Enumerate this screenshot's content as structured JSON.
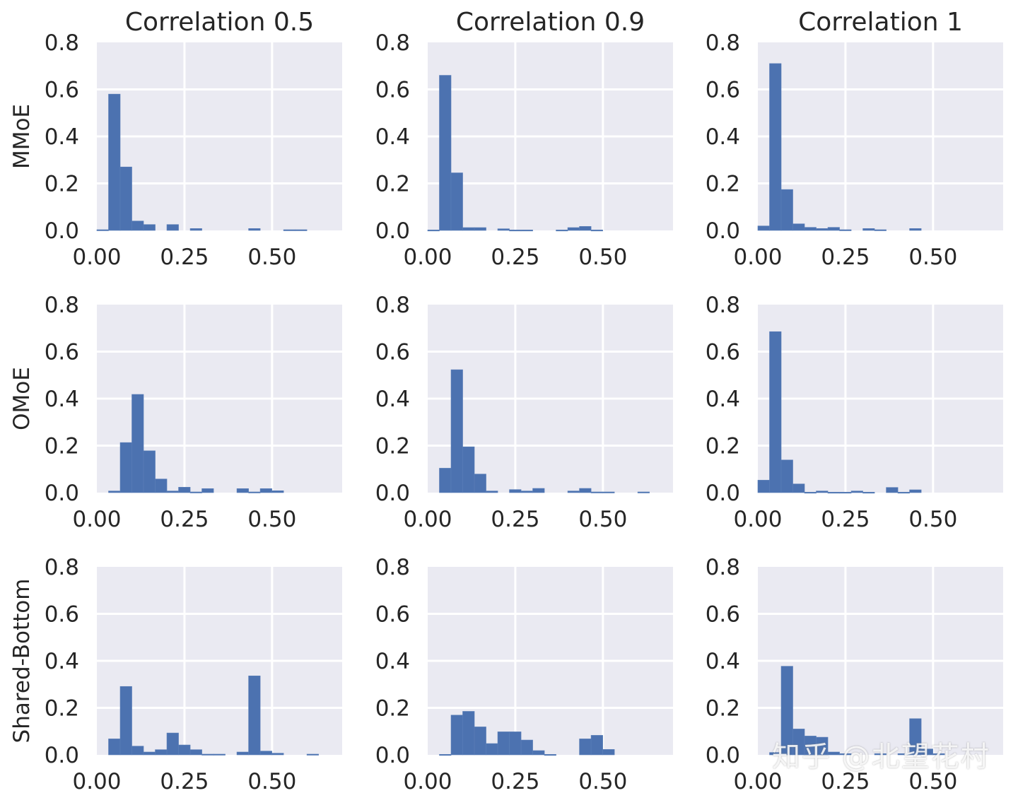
{
  "chart_data": {
    "type": "bar",
    "subtype": "histogram-grid",
    "columns": [
      "Correlation 0.5",
      "Correlation 0.9",
      "Correlation 1"
    ],
    "rows": [
      "MMoE",
      "OMoE",
      "Shared-Bottom"
    ],
    "bin_start": 0.0,
    "bin_width": 0.0333,
    "xlim": [
      0,
      0.7
    ],
    "ylim": [
      0,
      0.8
    ],
    "x_ticks": [
      "0.00",
      "0.25",
      "0.50"
    ],
    "x_tick_values": [
      0,
      0.25,
      0.5
    ],
    "y_ticks": [
      "0.0",
      "0.2",
      "0.4",
      "0.6",
      "0.8"
    ],
    "y_tick_values": [
      0,
      0.2,
      0.4,
      0.6,
      0.8
    ],
    "grid": true,
    "colors": {
      "bar": "#4c72b0",
      "background": "#eaeaf2",
      "grid": "#ffffff"
    },
    "panels": [
      {
        "row": "MMoE",
        "column": "Correlation 0.5",
        "values": [
          0.003,
          0.58,
          0.27,
          0.04,
          0.025,
          0,
          0.025,
          0,
          0.008,
          0,
          0,
          0,
          0,
          0.008,
          0,
          0,
          0.003,
          0.003,
          0,
          0
        ]
      },
      {
        "row": "MMoE",
        "column": "Correlation 0.9",
        "values": [
          0.002,
          0.66,
          0.245,
          0.012,
          0.012,
          0,
          0.007,
          0.002,
          0.002,
          0,
          0,
          0.002,
          0.012,
          0.017,
          0.002,
          0,
          0,
          0,
          0,
          0
        ]
      },
      {
        "row": "MMoE",
        "column": "Correlation 1",
        "values": [
          0.019,
          0.71,
          0.174,
          0.028,
          0.013,
          0.008,
          0.013,
          0.003,
          0,
          0.008,
          0.003,
          0,
          0,
          0.008,
          0,
          0,
          0,
          0,
          0,
          0
        ]
      },
      {
        "row": "OMoE",
        "column": "Correlation 0.5",
        "values": [
          0,
          0.007,
          0.213,
          0.418,
          0.178,
          0.058,
          0.007,
          0.023,
          0.003,
          0.017,
          0,
          0,
          0.017,
          0.003,
          0.017,
          0.008,
          0,
          0,
          0,
          0
        ]
      },
      {
        "row": "OMoE",
        "column": "Correlation 0.9",
        "values": [
          0,
          0.104,
          0.523,
          0.195,
          0.079,
          0.007,
          0,
          0.013,
          0.007,
          0.018,
          0,
          0,
          0.007,
          0.018,
          0.003,
          0.003,
          0,
          0,
          0.003,
          0
        ]
      },
      {
        "row": "OMoE",
        "column": "Correlation 1",
        "values": [
          0.053,
          0.685,
          0.139,
          0.037,
          0.002,
          0.007,
          0.002,
          0.002,
          0.007,
          0.002,
          0,
          0.022,
          0.002,
          0.012,
          0,
          0,
          0,
          0,
          0,
          0
        ]
      },
      {
        "row": "Shared-Bottom",
        "column": "Correlation 0.5",
        "values": [
          0,
          0.068,
          0.291,
          0.037,
          0.012,
          0.022,
          0.093,
          0.042,
          0.022,
          0.003,
          0.003,
          0,
          0.012,
          0.336,
          0.016,
          0.007,
          0,
          0,
          0.003,
          0
        ]
      },
      {
        "row": "Shared-Bottom",
        "column": "Correlation 0.9",
        "values": [
          0,
          0.002,
          0.169,
          0.185,
          0.119,
          0.048,
          0.098,
          0.098,
          0.063,
          0.018,
          0.002,
          0,
          0,
          0.068,
          0.083,
          0.023,
          0,
          0,
          0,
          0
        ]
      },
      {
        "row": "Shared-Bottom",
        "column": "Correlation 1",
        "values": [
          0,
          0.01,
          0.377,
          0.11,
          0.08,
          0.075,
          0.012,
          0.005,
          0,
          0,
          0.005,
          0,
          0.005,
          0.154,
          0.025,
          0.005,
          0,
          0,
          0,
          0
        ]
      }
    ]
  },
  "watermark": "知乎 @北望花村"
}
